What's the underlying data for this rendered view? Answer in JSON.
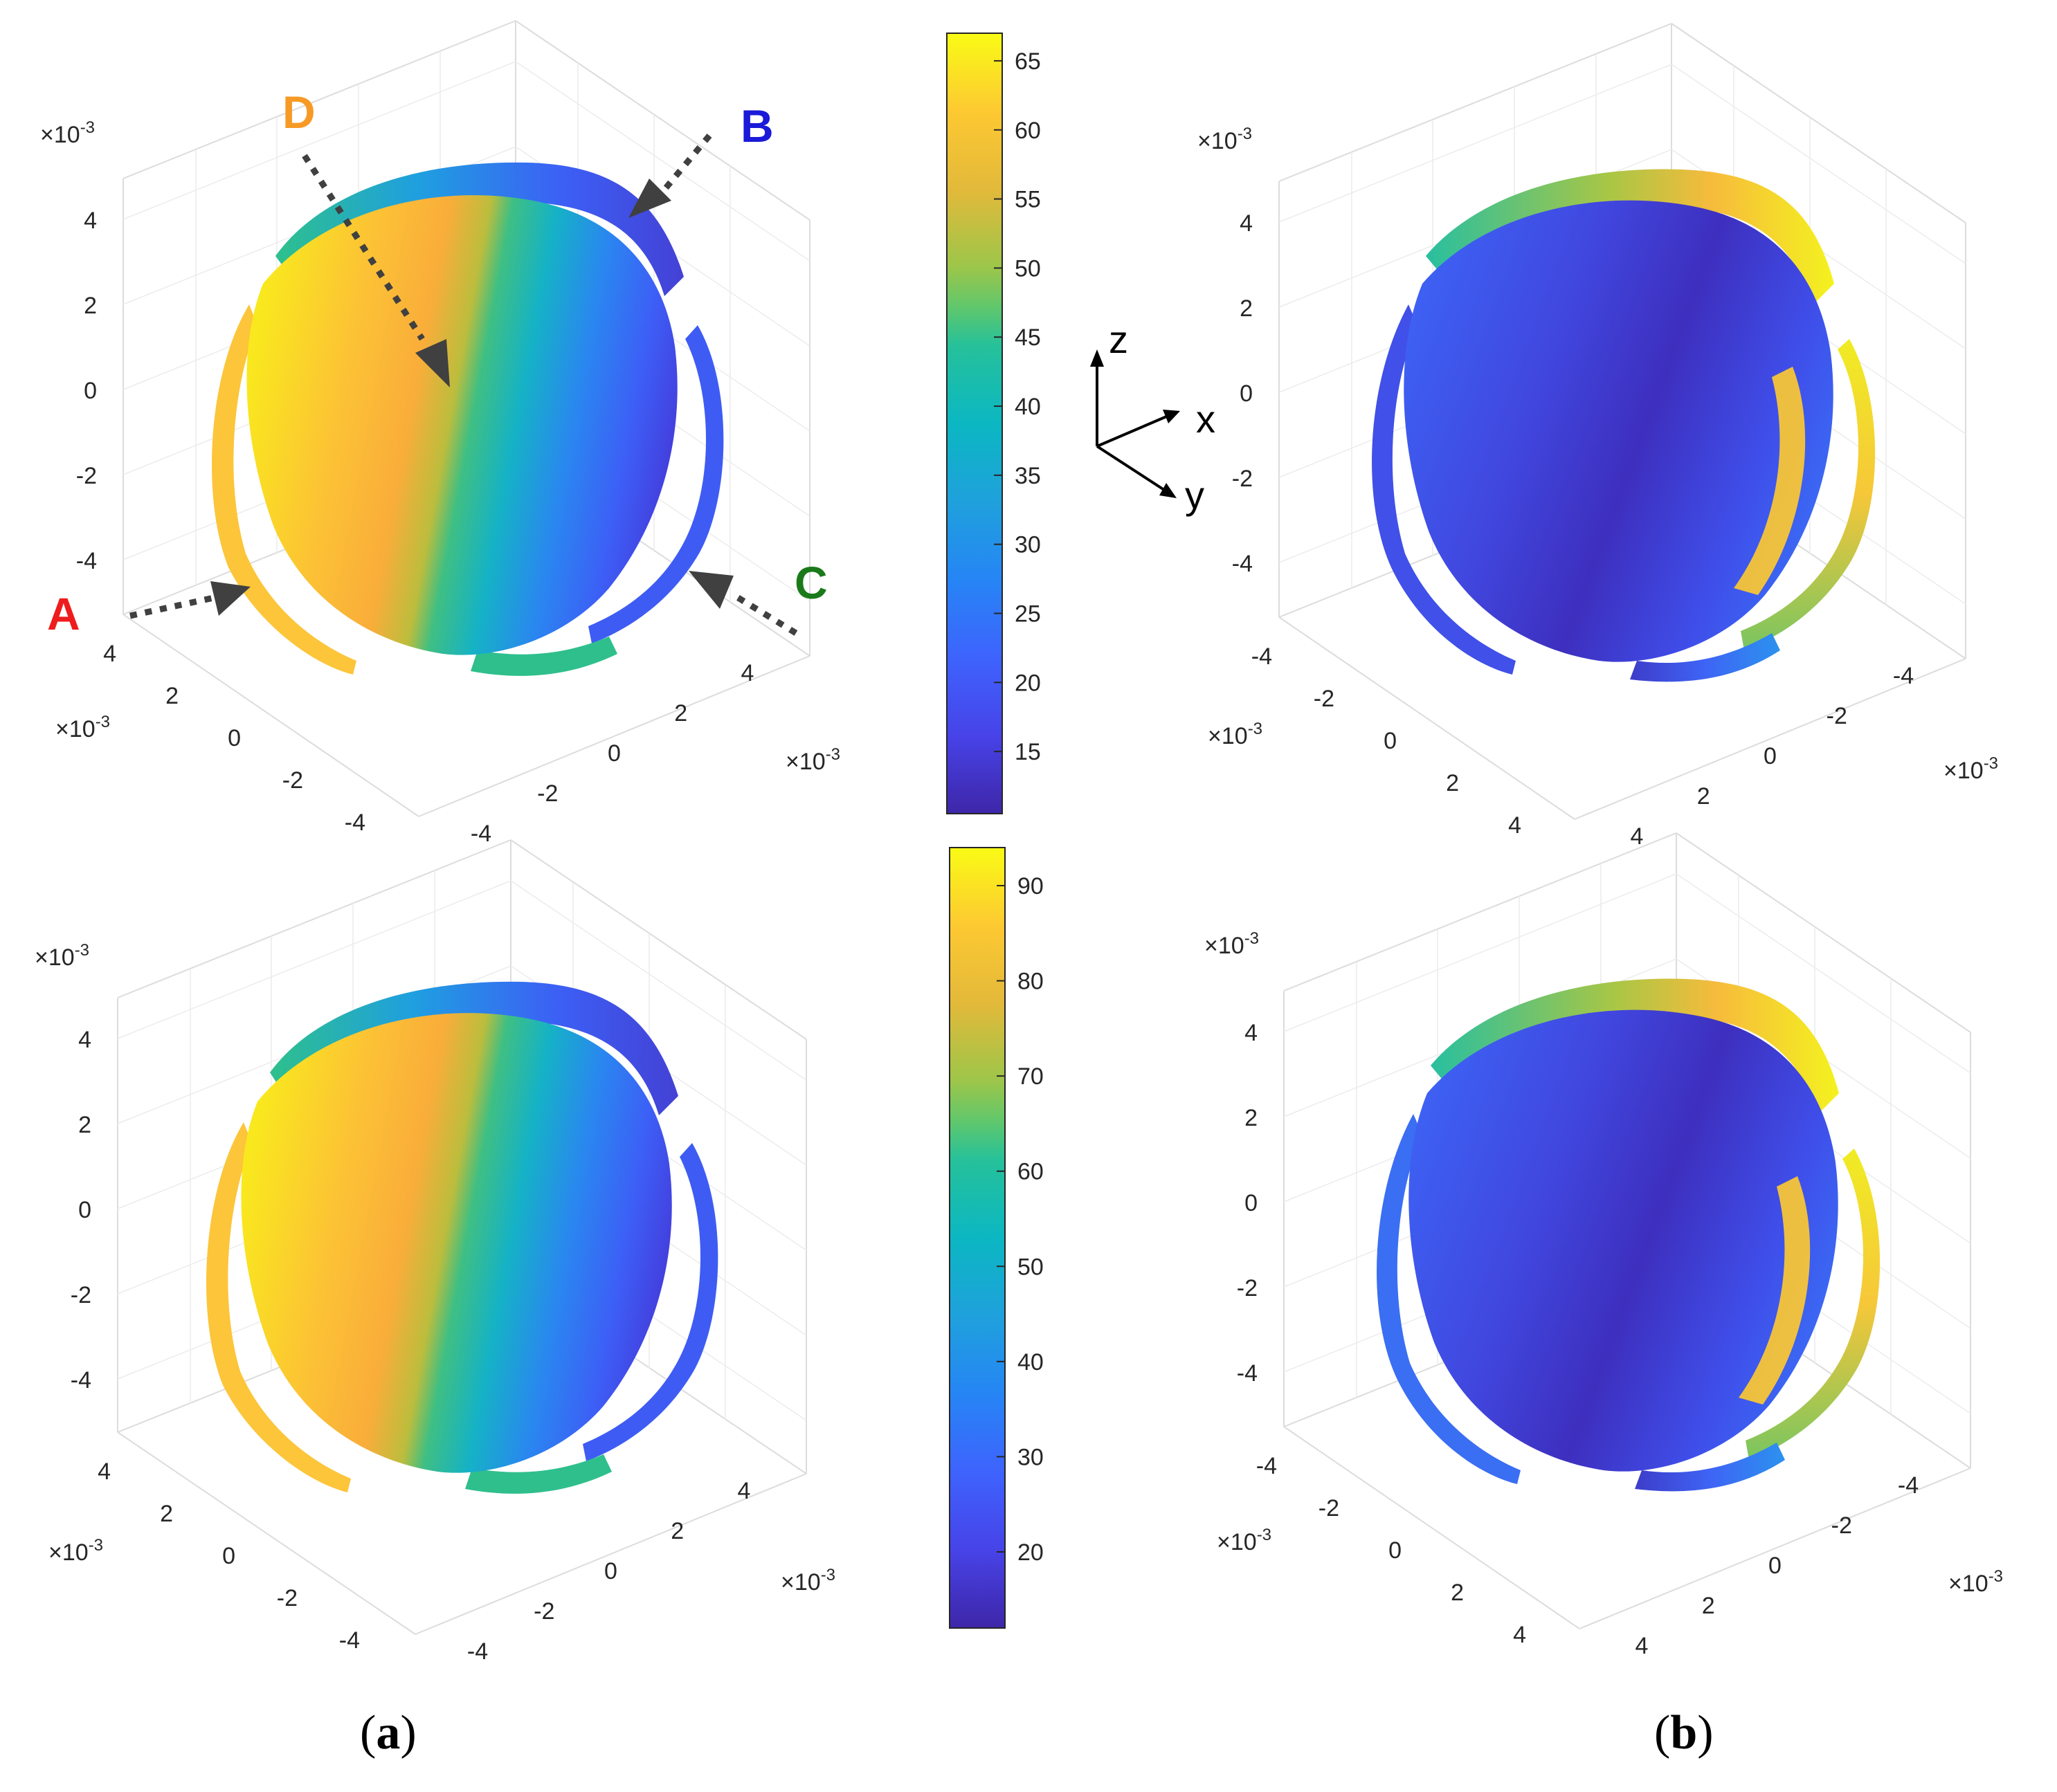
{
  "panel_labels": {
    "a": {
      "open": "(",
      "letter": "a",
      "close": ")"
    },
    "b": {
      "open": "(",
      "letter": "b",
      "close": ")"
    }
  },
  "axis_triad": {
    "z": "z",
    "x": "x",
    "y": "y"
  },
  "annotations": {
    "A": {
      "text": "A",
      "color": "#ee1c1c"
    },
    "B": {
      "text": "B",
      "color": "#1a1ad8"
    },
    "C": {
      "text": "C",
      "color": "#1a7a1a"
    },
    "D": {
      "text": "D",
      "color": "#f79a25"
    }
  },
  "exponent_label": {
    "base": "×10",
    "exp": "-3"
  },
  "colorbars": [
    {
      "ticks": [
        "15",
        "20",
        "25",
        "30",
        "35",
        "40",
        "45",
        "50",
        "55",
        "60",
        "65"
      ],
      "min": 10.5,
      "max": 67
    },
    {
      "ticks": [
        "20",
        "30",
        "40",
        "50",
        "60",
        "70",
        "80",
        "90"
      ],
      "min": 12,
      "max": 94
    }
  ],
  "colormap": "parula",
  "chart_data": [
    {
      "type": "heatmap",
      "panel": "(a) top",
      "view": "front",
      "zticks": [
        "4",
        "2",
        "0",
        "-2",
        "-4"
      ],
      "left_ticks": [
        "4",
        "2",
        "0",
        "-2",
        "-4"
      ],
      "right_ticks": [
        "-4",
        "-2",
        "0",
        "2",
        "4"
      ],
      "exponent": "×10^-3",
      "colorbar_range": [
        10.5,
        67
      ]
    },
    {
      "type": "heatmap",
      "panel": "(b) top",
      "view": "back",
      "zticks": [
        "4",
        "2",
        "0",
        "-2",
        "-4"
      ],
      "left_ticks": [
        "-4",
        "-2",
        "0",
        "2",
        "4"
      ],
      "right_ticks": [
        "4",
        "2",
        "0",
        "-2",
        "-4"
      ],
      "exponent": "×10^-3",
      "colorbar_range": [
        10.5,
        67
      ]
    },
    {
      "type": "heatmap",
      "panel": "(a) bottom",
      "view": "front",
      "zticks": [
        "4",
        "2",
        "0",
        "-2",
        "-4"
      ],
      "left_ticks": [
        "4",
        "2",
        "0",
        "-2",
        "-4"
      ],
      "right_ticks": [
        "-4",
        "-2",
        "0",
        "2",
        "4"
      ],
      "exponent": "×10^-3",
      "colorbar_range": [
        12,
        94
      ]
    },
    {
      "type": "heatmap",
      "panel": "(b) bottom",
      "view": "back",
      "zticks": [
        "4",
        "2",
        "0",
        "-2",
        "-4"
      ],
      "left_ticks": [
        "-4",
        "-2",
        "0",
        "2",
        "4"
      ],
      "right_ticks": [
        "4",
        "2",
        "0",
        "-2",
        "-4"
      ],
      "exponent": "×10^-3",
      "colorbar_range": [
        12,
        94
      ]
    }
  ]
}
